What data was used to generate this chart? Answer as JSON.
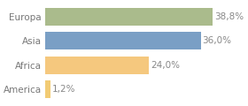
{
  "categories": [
    "America",
    "Africa",
    "Asia",
    "Europa"
  ],
  "values": [
    1.2,
    24.0,
    36.0,
    38.8
  ],
  "labels": [
    "1,2%",
    "24,0%",
    "36,0%",
    "38,8%"
  ],
  "colors": [
    "#f2cb74",
    "#f5c87e",
    "#7a9fc5",
    "#aabb8c"
  ],
  "xlim": [
    0,
    46
  ],
  "background_color": "#ffffff",
  "grid_color": "#e0e0e0",
  "text_color": "#777777",
  "label_color": "#888888",
  "bar_height": 0.72,
  "label_fontsize": 7.5,
  "tick_fontsize": 7.5
}
